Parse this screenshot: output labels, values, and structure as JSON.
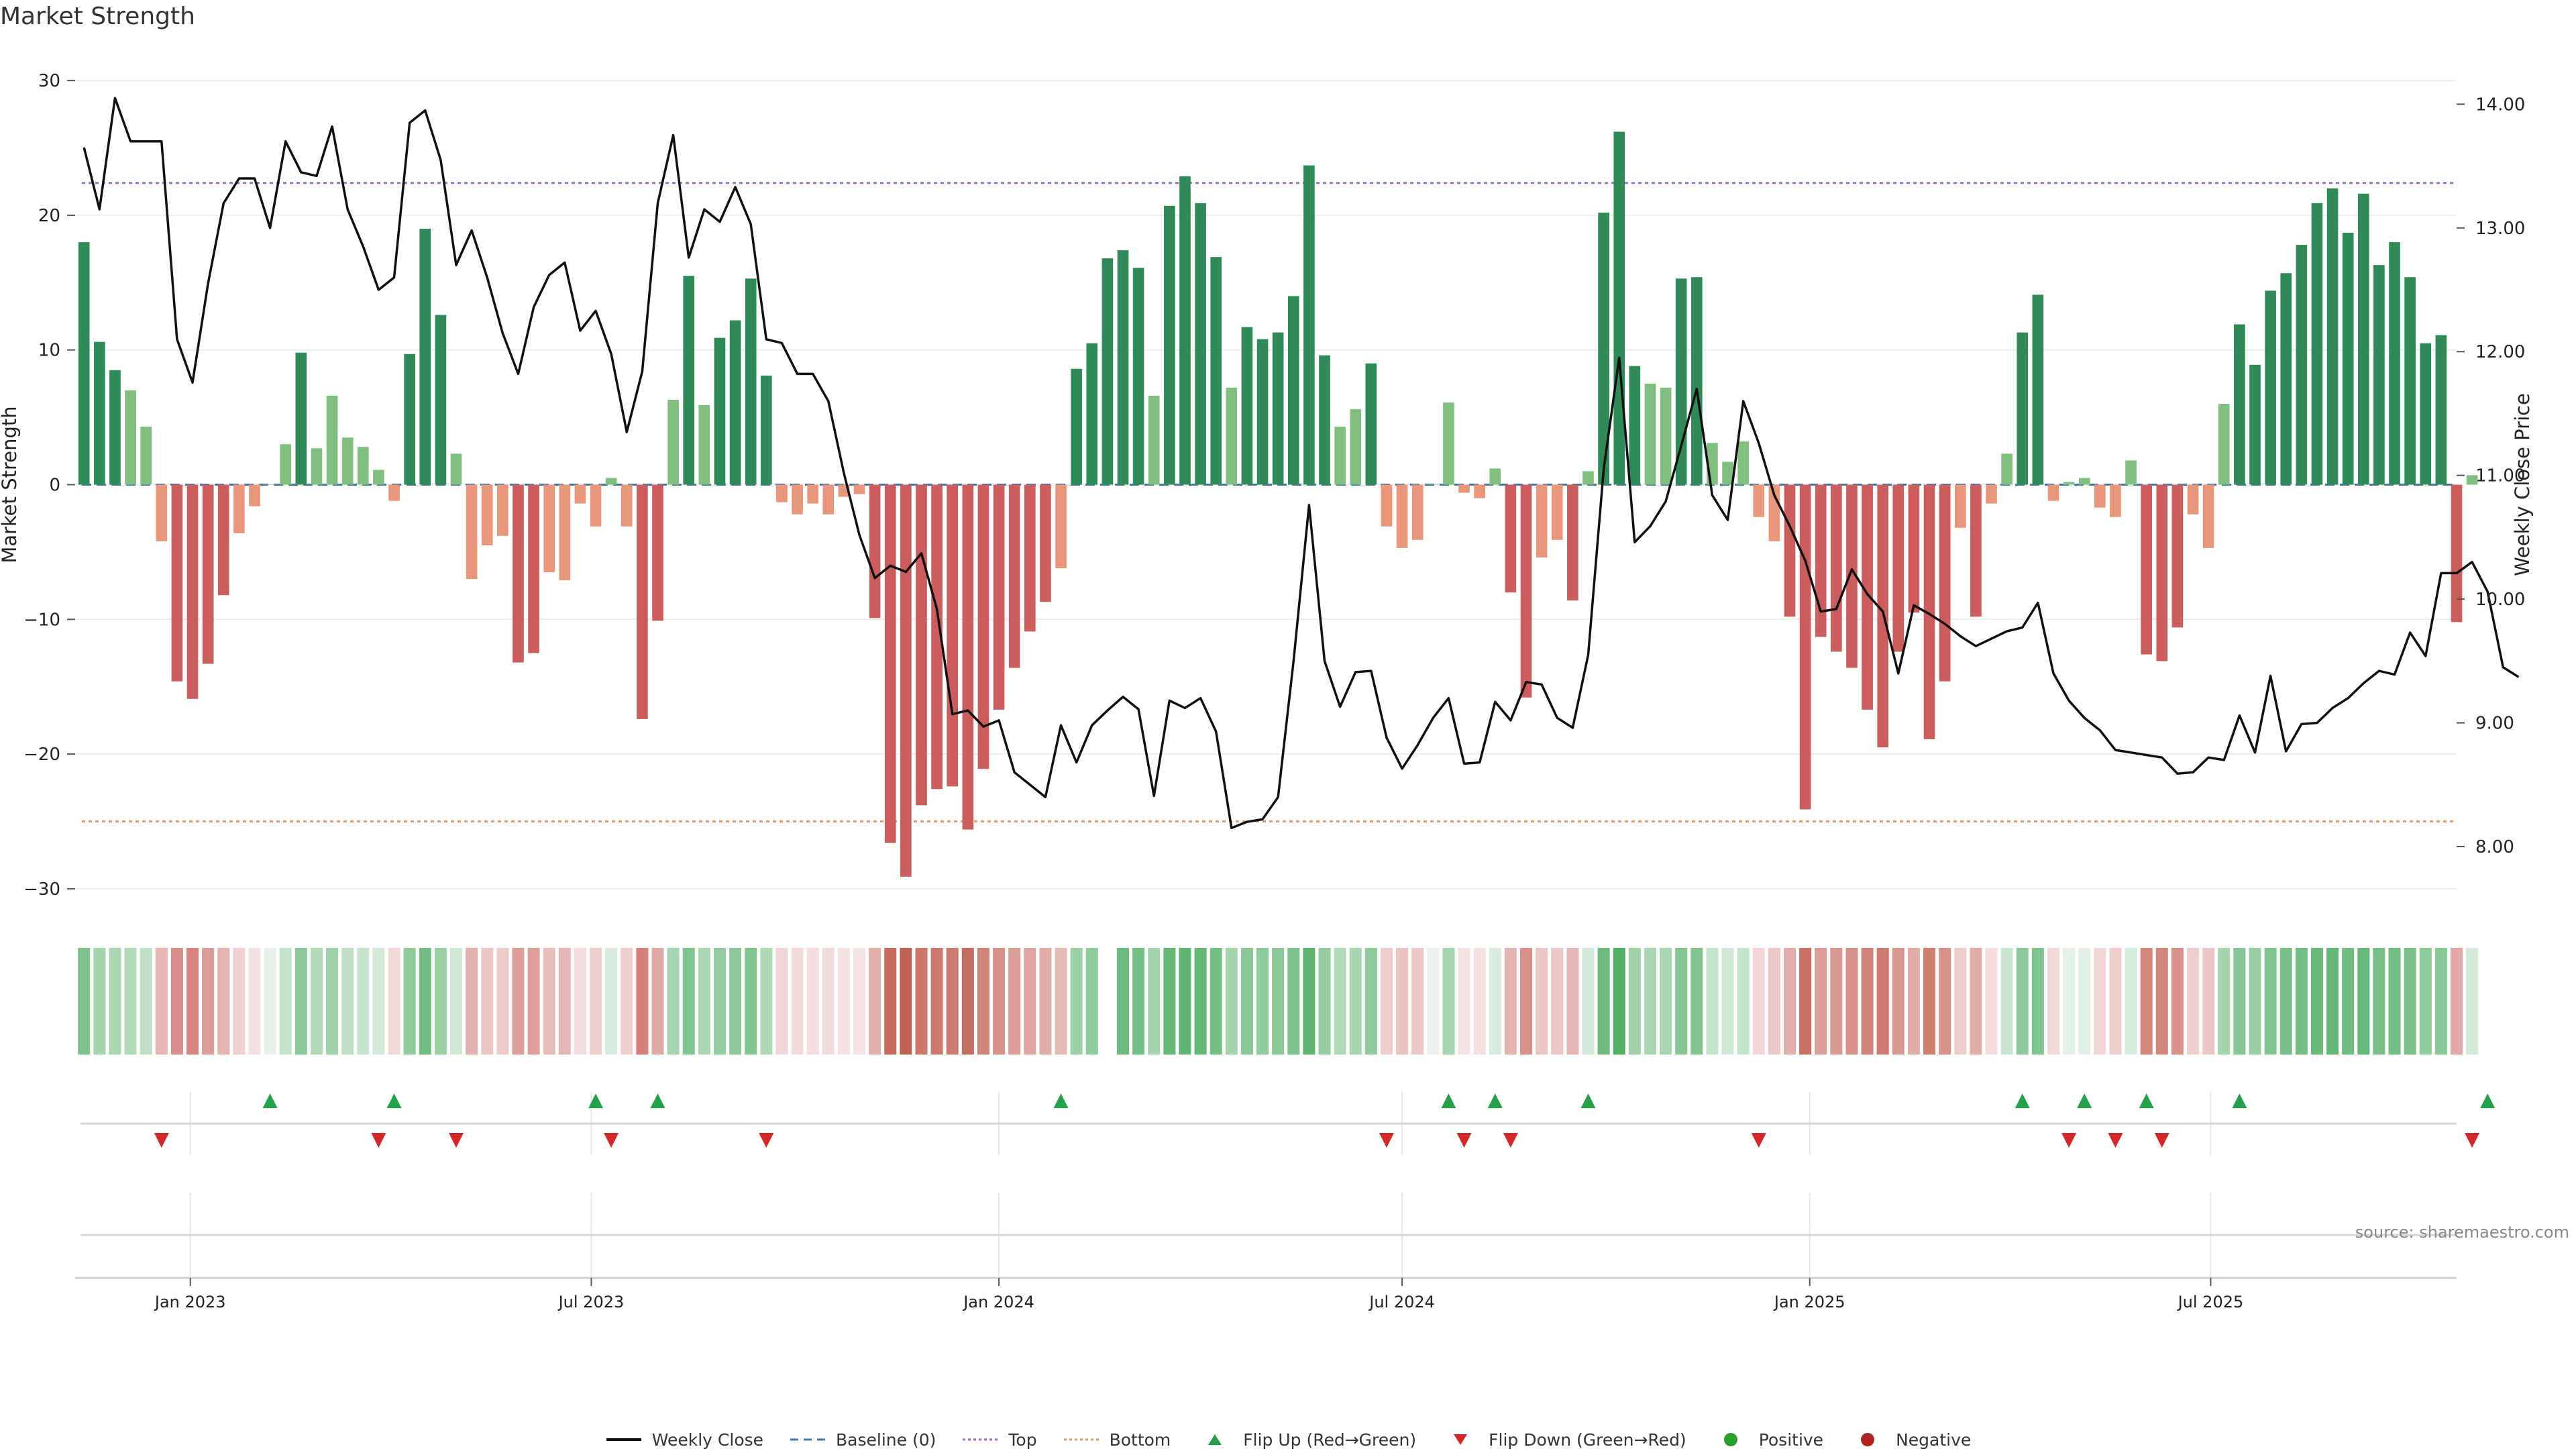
{
  "chart_data": {
    "type": "bar",
    "title": "Market Strength",
    "ylabel": "Market Strength",
    "y2label": "Weekly Close Price",
    "ylim": [
      -31,
      31
    ],
    "y2lim": [
      7.55,
      14.3
    ],
    "yticks": [
      30,
      20,
      10,
      0,
      -10,
      -20,
      -30
    ],
    "ytick_labels": [
      "30",
      "20",
      "10",
      "0",
      "−10",
      "−20",
      "−30"
    ],
    "y2ticks": [
      14.0,
      13.0,
      12.0,
      11.0,
      10.0,
      9.0,
      8.0
    ],
    "y2tick_labels": [
      "14.00",
      "13.00",
      "12.00",
      "11.00",
      "10.00",
      "9.00",
      "8.00"
    ],
    "xlim": [
      "2022-11-10",
      "2025-10-20"
    ],
    "xtick_dates": [
      "2023-01-01",
      "2023-07-01",
      "2024-01-01",
      "2024-07-01",
      "2025-01-01",
      "2025-07-01"
    ],
    "xtick_labels": [
      "Jan 2023",
      "Jul 2023",
      "Jan 2024",
      "Jul 2024",
      "Jan 2025",
      "Jul 2025"
    ],
    "first_date": "2022-11-14",
    "week_step_days": 7,
    "missing_week_index": 66,
    "top_line": 22.4,
    "bottom_line": -25,
    "strength": [
      18,
      10.6,
      8.5,
      7,
      4.3,
      -4.2,
      -14.6,
      -15.9,
      -13.3,
      -8.2,
      -3.6,
      -1.6,
      0,
      3,
      9.8,
      2.7,
      6.6,
      3.5,
      2.8,
      1.1,
      -1.2,
      9.7,
      19,
      12.6,
      2.3,
      -7,
      -4.5,
      -3.8,
      -13.2,
      -12.5,
      -6.5,
      -7.1,
      -1.4,
      -3.1,
      0.5,
      -3.1,
      -17.4,
      -10.1,
      6.3,
      15.5,
      5.9,
      10.9,
      12.2,
      15.3,
      8.1,
      -1.3,
      -2.2,
      -1.4,
      -2.2,
      -0.9,
      -0.7,
      -9.9,
      -26.6,
      -29.1,
      -23.8,
      -22.6,
      -22.4,
      -25.6,
      -21.1,
      -16.7,
      -13.6,
      -10.9,
      -8.7,
      -6.2,
      8.6,
      10.5,
      16.8,
      17.4,
      16.1,
      6.6,
      20.7,
      22.9,
      20.9,
      16.9,
      7.2,
      11.7,
      10.8,
      11.3,
      14,
      23.7,
      9.6,
      4.3,
      5.6,
      9,
      -3.1,
      -4.7,
      -4.1,
      0,
      6.1,
      -0.6,
      -1,
      1.2,
      -8,
      -15.8,
      -5.4,
      -4.1,
      -8.6,
      1,
      20.2,
      26.2,
      8.8,
      7.5,
      7.2,
      15.3,
      15.4,
      3.1,
      1.7,
      3.2,
      -2.4,
      -4.2,
      -9.8,
      -24.1,
      -11.3,
      -12.4,
      -13.6,
      -16.7,
      -19.5,
      -12.4,
      -9.5,
      -18.9,
      -14.6,
      -3.2,
      -9.8,
      -1.4,
      2.3,
      11.3,
      14.1,
      -1.2,
      0.2,
      0.5,
      -1.7,
      -2.4,
      1.8,
      -12.6,
      -13.1,
      -10.6,
      -2.2,
      -4.7,
      6,
      11.9,
      8.9,
      14.4,
      15.7,
      17.8,
      20.9,
      22,
      18.7,
      21.6,
      16.3,
      18,
      15.4,
      10.5,
      11.1,
      -10.2,
      0.7
    ],
    "price": [
      13.65,
      13.15,
      14.05,
      13.7,
      13.7,
      13.7,
      12.1,
      11.75,
      12.55,
      13.2,
      13.4,
      13.4,
      13,
      13.7,
      13.45,
      13.42,
      13.82,
      13.15,
      12.85,
      12.5,
      12.6,
      13.85,
      13.95,
      13.55,
      12.7,
      12.98,
      12.6,
      12.15,
      11.82,
      12.36,
      12.62,
      12.72,
      12.17,
      12.33,
      11.98,
      11.35,
      11.84,
      13.2,
      13.75,
      12.76,
      13.15,
      13.05,
      13.33,
      13.03,
      12.1,
      12.07,
      11.82,
      11.82,
      11.6,
      11.02,
      10.52,
      10.17,
      10.27,
      10.22,
      10.37,
      9.92,
      9.07,
      9.1,
      8.97,
      9.02,
      8.6,
      8.5,
      8.4,
      8.98,
      8.68,
      8.98,
      9.1,
      9.21,
      9.11,
      8.41,
      9.18,
      9.12,
      9.2,
      8.93,
      8.15,
      8.2,
      8.22,
      8.4,
      9.5,
      10.76,
      9.5,
      9.13,
      9.41,
      9.42,
      8.88,
      8.63,
      8.82,
      9.04,
      9.2,
      8.67,
      8.68,
      9.17,
      9.02,
      9.33,
      9.31,
      9.04,
      8.96,
      9.55,
      11.05,
      11.95,
      10.46,
      10.59,
      10.79,
      11.24,
      11.7,
      10.84,
      10.64,
      11.6,
      11.26,
      10.84,
      10.59,
      10.31,
      9.9,
      9.92,
      10.24,
      10.04,
      9.9,
      9.4,
      9.95,
      9.88,
      9.8,
      9.7,
      9.62,
      9.68,
      9.74,
      9.77,
      9.97,
      9.4,
      9.18,
      9.04,
      8.94,
      8.78,
      8.76,
      8.74,
      8.72,
      8.59,
      8.6,
      8.72,
      8.7,
      9.06,
      8.76,
      9.38,
      8.77,
      8.99,
      9,
      9.12,
      9.2,
      9.32,
      9.42,
      9.39,
      9.73,
      9.54,
      10.21,
      10.21,
      10.3,
      10.06,
      9.45,
      9.37
    ],
    "heat_colors": [
      "#7fc48f",
      "#a3d4ac",
      "#a9d7b2",
      "#b0dab8",
      "#bde0c4",
      "#e5b6b4",
      "#d98e8b",
      "#d6857f",
      "#dd9c98",
      "#e5b3b0",
      "#f0d1cf",
      "#f4e0df",
      "#e7f0e9",
      "#c2e4ca",
      "#8cc99a",
      "#b1dab8",
      "#a0d2a9",
      "#bfe0c6",
      "#c6e3cd",
      "#d3e9d8",
      "#f2d8d6",
      "#8ccb9a",
      "#6fbd80",
      "#9ad1a5",
      "#cfe8d4",
      "#e3b0ad",
      "#ebc5c3",
      "#edcbc9",
      "#dd9d99",
      "#de9f9c",
      "#e7bcb9",
      "#e5b6b3",
      "#f3dcdb",
      "#efcfcd",
      "#d8ecdd",
      "#efcfcd",
      "#d4807a",
      "#e1a8a5",
      "#a5d5ae",
      "#7ec590",
      "#a8d7b1",
      "#93cda0",
      "#8dc99a",
      "#7ec590",
      "#addab5",
      "#f1d6d5",
      "#f2dad9",
      "#f3dcdb",
      "#f2dad9",
      "#f4e1e0",
      "#f5e4e3",
      "#e3aeab",
      "#c76a5c",
      "#c0624f",
      "#cc7668",
      "#cd786c",
      "#ce7b70",
      "#c66d62",
      "#d08377",
      "#d89289",
      "#dc9d96",
      "#e0a59f",
      "#e3aca7",
      "#e7b9b5",
      "#9ad1a5",
      "#8ccb9a",
      "#6fbd80",
      "#6bbb7c",
      "#73c084",
      "#a3d4ac",
      "#63b874",
      "#5fb670",
      "#63b874",
      "#73c084",
      "#a3d4ac",
      "#88c997",
      "#8ccb9a",
      "#8ac998",
      "#7dc48e",
      "#5db46e",
      "#93cda0",
      "#b1dab8",
      "#a6d6af",
      "#8fcb9c",
      "#efcfcd",
      "#ebc3c1",
      "#ecc7c5",
      "#ebf1ed",
      "#a5d5ae",
      "#f5e3e2",
      "#f4e1e0",
      "#d6ecdc",
      "#e5b4b0",
      "#d89089",
      "#ebc5c3",
      "#ecc7c5",
      "#e5b6b3",
      "#d3e9d8",
      "#6bbb7c",
      "#52b063",
      "#a0d2a9",
      "#a7d6b0",
      "#a8d7b1",
      "#83c692",
      "#82c591",
      "#c2e4ca",
      "#cfe8d4",
      "#c2e4ca",
      "#f1d6d5",
      "#ecc9c7",
      "#e2aeab",
      "#c96f63",
      "#dc9e98",
      "#da9892",
      "#d89189",
      "#d3847a",
      "#d0796e",
      "#da9892",
      "#e2aca7",
      "#d0806f",
      "#d89189",
      "#efcdcb",
      "#e2aca7",
      "#f3dcdb",
      "#cae6d0",
      "#8dc99a",
      "#80c48f",
      "#f2d8d6",
      "#e3f1e6",
      "#e2f0e5",
      "#f1d6d5",
      "#efcfcd",
      "#d6ecdc",
      "#d5877d",
      "#d5857b",
      "#d99189",
      "#efcfcd",
      "#ecc6c4",
      "#a3d4ac",
      "#85c794",
      "#98d0a3",
      "#7ec590",
      "#77c188",
      "#71bf83",
      "#68ba79",
      "#64b875",
      "#6fbd80",
      "#66b978",
      "#76c187",
      "#71bf83",
      "#79c28a",
      "#8ccb9a",
      "#89c998",
      "#e1a8a5",
      "#d3e9d8"
    ],
    "flips_up": [
      12,
      20,
      33,
      37,
      63,
      88,
      91,
      97,
      125,
      129,
      133,
      139,
      155
    ],
    "flips_down": [
      5,
      19,
      24,
      34,
      44,
      84,
      89,
      92,
      108,
      128,
      131,
      134,
      154
    ]
  },
  "source": "source: sharemaestro.com",
  "legend": [
    {
      "label": "Weekly Close",
      "symbol": "line",
      "color": "#111111"
    },
    {
      "label": "Baseline (0)",
      "symbol": "dash",
      "color": "#4a78a6"
    },
    {
      "label": "Top",
      "symbol": "dotted",
      "color": "#9b6fc4"
    },
    {
      "label": "Bottom",
      "symbol": "dotted",
      "color": "#e3996a"
    },
    {
      "label": "Flip Up (Red→Green)",
      "symbol": "triangle-up",
      "color": "#22a04a"
    },
    {
      "label": "Flip Down (Green→Red)",
      "symbol": "triangle-down",
      "color": "#d62728"
    },
    {
      "label": "Positive",
      "symbol": "circle",
      "color": "#2ca02c"
    },
    {
      "label": "Negative",
      "symbol": "circle",
      "color": "#b22222"
    }
  ],
  "colors": {
    "bar_green_strong": "#2e8b57",
    "bar_green_light": "#7fc07f",
    "bar_red_strong": "#cd5c5c",
    "bar_red_light": "#e9967a",
    "price_line": "#111111",
    "top_line": "#9b6fc4",
    "bottom_line": "#e3996a",
    "baseline": "#4a78a6",
    "flip_up": "#22a04a",
    "flip_down": "#d62728"
  }
}
